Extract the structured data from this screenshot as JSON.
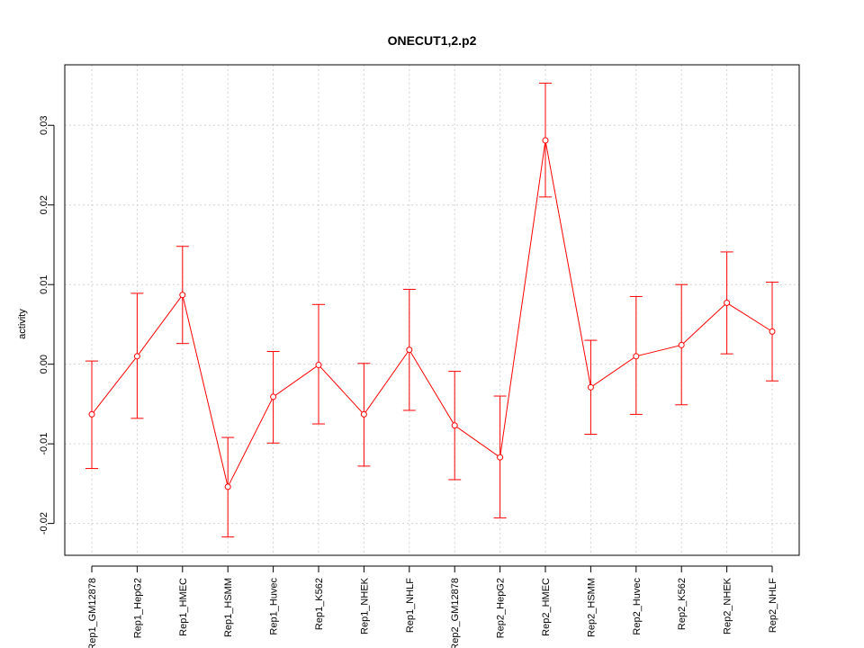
{
  "chart_data": {
    "type": "line",
    "title": "ONECUT1,2.p2",
    "xlabel": "",
    "ylabel": "activity",
    "categories": [
      "Rep1_GM12878",
      "Rep1_HepG2",
      "Rep1_HMEC",
      "Rep1_HSMM",
      "Rep1_Huvec",
      "Rep1_K562",
      "Rep1_NHEK",
      "Rep1_NHLF",
      "Rep2_GM12878",
      "Rep2_HepG2",
      "Rep2_HMEC",
      "Rep2_HSMM",
      "Rep2_Huvec",
      "Rep2_K562",
      "Rep2_NHEK",
      "Rep2_NHLF"
    ],
    "series": [
      {
        "values": [
          -0.0063,
          0.001,
          0.0087,
          -0.0154,
          -0.0041,
          -0.0001,
          -0.0063,
          0.0018,
          -0.0077,
          -0.0117,
          0.0281,
          -0.0029,
          0.001,
          0.0024,
          0.0077,
          0.0041
        ],
        "lower": [
          -0.0131,
          -0.0068,
          0.0026,
          -0.0217,
          -0.0099,
          -0.0075,
          -0.0128,
          -0.0058,
          -0.0145,
          -0.0193,
          0.021,
          -0.0088,
          -0.0063,
          -0.0051,
          0.0013,
          -0.0021
        ],
        "upper": [
          0.0004,
          0.0089,
          0.0148,
          -0.0092,
          0.0016,
          0.0075,
          0.0001,
          0.0094,
          -0.0009,
          -0.004,
          0.0353,
          0.003,
          0.0085,
          0.01,
          0.0141,
          0.0103
        ]
      }
    ],
    "yticks": [
      -0.02,
      -0.01,
      0.0,
      0.01,
      0.02,
      0.03
    ],
    "ytick_labels": [
      "-0.02",
      "-0.01",
      "0.00",
      "0.01",
      "0.02",
      "0.03"
    ],
    "ylim": [
      -0.024,
      0.0376
    ],
    "grid": true,
    "legend": "none",
    "colors": {
      "series": "#ff0000",
      "grid": "#d3d3d3",
      "axis": "#000000"
    }
  }
}
